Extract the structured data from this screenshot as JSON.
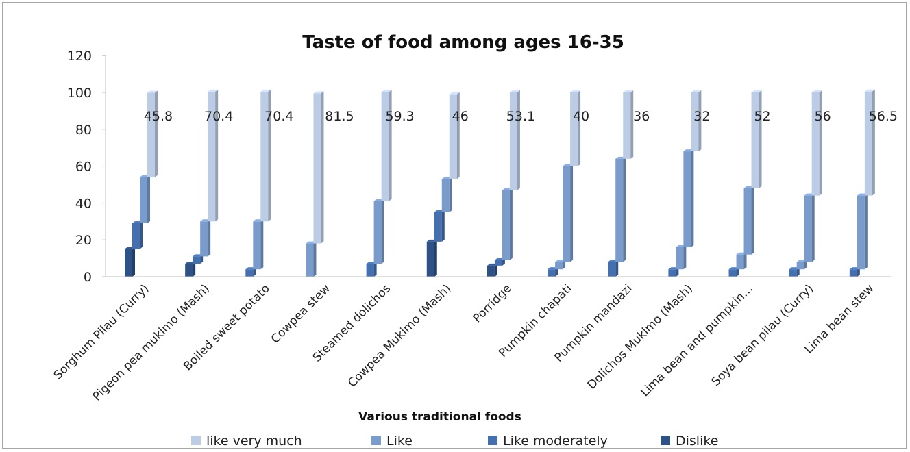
{
  "chart_data": {
    "type": "bar",
    "title": "Taste of food among ages 16-35",
    "xlabel": "Various traditional foods",
    "ylabel": "",
    "ylim": [
      0,
      120
    ],
    "yticks": [
      0,
      20,
      40,
      60,
      80,
      100,
      120
    ],
    "grid": false,
    "legend_position": "bottom",
    "categories": [
      "Sorghum Pilau (Curry)",
      "Pigeon pea mukimo (Mash)",
      "Boiled sweet potato",
      "Cowpea stew",
      "Steamed dolichos",
      "Cowpea Mukimo (Mash)",
      "Porridge",
      "Pumpkin chapati",
      "Pumpkin mandazi",
      "Dolichos Mukimo (Mash)",
      "Lima bean and pumpkin…",
      "Soya bean pilau (Curry)",
      "Lima bean stew"
    ],
    "series": [
      {
        "name": "Dislike",
        "color": "#2e5186",
        "values": [
          15,
          7,
          0,
          0,
          0,
          19,
          6,
          0,
          0,
          0,
          0,
          0,
          0
        ]
      },
      {
        "name": "Like moderately",
        "color": "#4470b0",
        "values": [
          14,
          4,
          4,
          0,
          7,
          16,
          3,
          4,
          8,
          4,
          4,
          4,
          4
        ]
      },
      {
        "name": "Like",
        "color": "#7a9ccc",
        "values": [
          25,
          19,
          26,
          18,
          34,
          18,
          38,
          4,
          56,
          12,
          8,
          4,
          0
        ]
      },
      {
        "name": "",
        "color": "#7a9ccc",
        "values": [
          0,
          0,
          0,
          0,
          0,
          0,
          0,
          52,
          0,
          52,
          36,
          36,
          40
        ]
      },
      {
        "name": "like very much",
        "color": "#bccce4",
        "values": [
          45.8,
          70.4,
          70.4,
          81.5,
          59.3,
          46,
          53.1,
          40,
          36,
          32,
          52,
          56,
          56.5
        ]
      }
    ],
    "data_labels": [
      "45.8",
      "70.4",
      "70.4",
      "81.5",
      "59.3",
      "46",
      "53.1",
      "40",
      "36",
      "32",
      "52",
      "56",
      "56.5"
    ],
    "legend": [
      {
        "name": "like very much",
        "color": "#bccce4"
      },
      {
        "name": "Like",
        "color": "#7a9ccc"
      },
      {
        "name": "Like moderately",
        "color": "#4470b0"
      },
      {
        "name": "Dislike",
        "color": "#2e5186"
      }
    ]
  }
}
